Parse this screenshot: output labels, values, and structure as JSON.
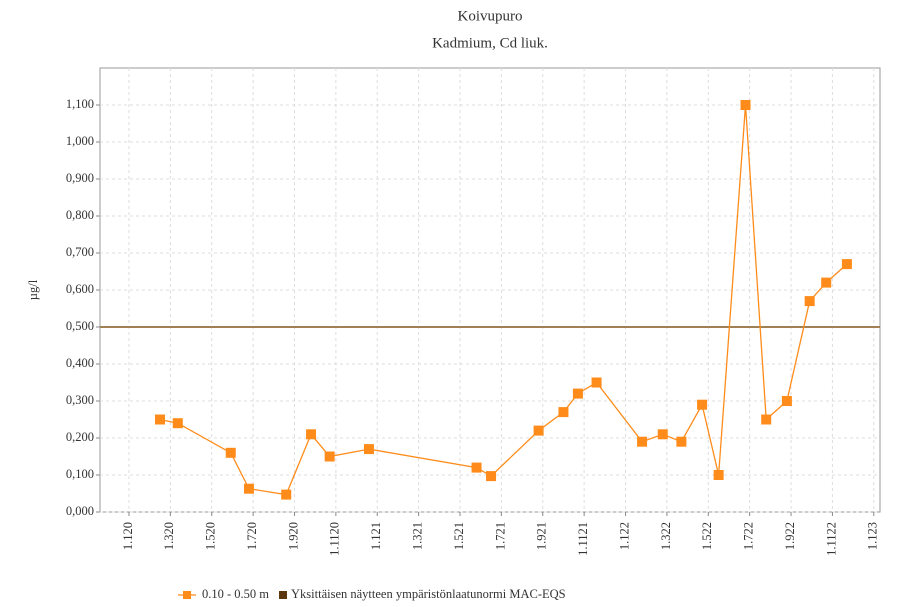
{
  "chart_data": {
    "type": "line",
    "title": "Koivupuro",
    "subtitle": "Kadmium, Cd liuk.",
    "y_label": "µg/l",
    "x": [
      1.5,
      2.36,
      4.92,
      5.8,
      7.6,
      8.8,
      9.7,
      11.6,
      16.8,
      17.5,
      19.8,
      21.0,
      21.7,
      22.6,
      24.8,
      25.8,
      26.7,
      27.7,
      28.5,
      29.8,
      30.8,
      31.8,
      32.9,
      33.7,
      34.7
    ],
    "series": [
      {
        "name": "0.10 - 0.50 m",
        "color": "#ff8c1a",
        "values": [
          0.25,
          0.24,
          0.16,
          0.063,
          0.047,
          0.21,
          0.15,
          0.17,
          0.12,
          0.097,
          0.22,
          0.27,
          0.32,
          0.35,
          0.19,
          0.21,
          0.19,
          0.29,
          0.1,
          1.1,
          0.25,
          0.3,
          0.57,
          0.62,
          0.67
        ]
      }
    ],
    "threshold": {
      "name": "Yksittäisen näytteen ympäristönlaatunormi MAC-EQS",
      "value": 0.5,
      "color": "#a08052",
      "legend_color": "#5a3510"
    },
    "xlim": [
      -1.4,
      36.3
    ],
    "xticks": [
      {
        "value": 0,
        "label": "1.120"
      },
      {
        "value": 2,
        "label": "1.320"
      },
      {
        "value": 4,
        "label": "1.520"
      },
      {
        "value": 6,
        "label": "1.720"
      },
      {
        "value": 8,
        "label": "1.920"
      },
      {
        "value": 10,
        "label": "1.1120"
      },
      {
        "value": 12,
        "label": "1.121"
      },
      {
        "value": 14,
        "label": "1.321"
      },
      {
        "value": 16,
        "label": "1.521"
      },
      {
        "value": 18,
        "label": "1.721"
      },
      {
        "value": 20,
        "label": "1.921"
      },
      {
        "value": 22,
        "label": "1.1121"
      },
      {
        "value": 24,
        "label": "1.122"
      },
      {
        "value": 26,
        "label": "1.322"
      },
      {
        "value": 28,
        "label": "1.522"
      },
      {
        "value": 30,
        "label": "1.722"
      },
      {
        "value": 32,
        "label": "1.922"
      },
      {
        "value": 34,
        "label": "1.1122"
      },
      {
        "value": 36,
        "label": "1.123"
      }
    ],
    "ylim": [
      0,
      1.2
    ],
    "yticks": [
      {
        "value": 0,
        "label": "0,000"
      },
      {
        "value": 0.1,
        "label": "0,100"
      },
      {
        "value": 0.2,
        "label": "0,200"
      },
      {
        "value": 0.3,
        "label": "0,300"
      },
      {
        "value": 0.4,
        "label": "0,400"
      },
      {
        "value": 0.5,
        "label": "0,500"
      },
      {
        "value": 0.6,
        "label": "0,600"
      },
      {
        "value": 0.7,
        "label": "0,700"
      },
      {
        "value": 0.8,
        "label": "0,800"
      },
      {
        "value": 0.9,
        "label": "0,900"
      },
      {
        "value": 1.0,
        "label": "1,000"
      },
      {
        "value": 1.1,
        "label": "1,100"
      }
    ],
    "grid": true
  }
}
